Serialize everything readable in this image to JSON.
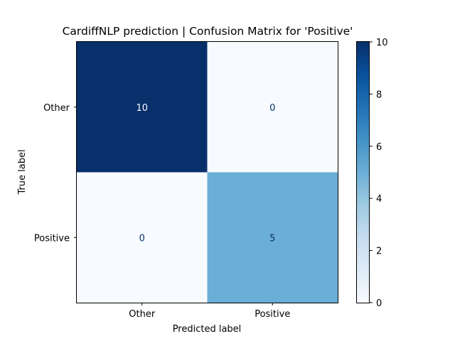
{
  "chart_data": {
    "type": "heatmap",
    "title": "CardiffNLP prediction | Confusion Matrix for 'Positive'",
    "xlabel": "Predicted label",
    "ylabel": "True label",
    "x_categories": [
      "Other",
      "Positive"
    ],
    "y_categories": [
      "Other",
      "Positive"
    ],
    "matrix": [
      [
        10,
        0
      ],
      [
        0,
        5
      ]
    ],
    "colormap": "Blues",
    "colorbar": {
      "min": 0,
      "max": 10,
      "ticks": [
        "0",
        "2",
        "4",
        "6",
        "8",
        "10"
      ]
    },
    "colors": {
      "high": "#08306b",
      "mid": "#6baed6",
      "low": "#f7fbff",
      "text_on_dark": "#ffffff",
      "text_on_light": "#08306b"
    }
  }
}
